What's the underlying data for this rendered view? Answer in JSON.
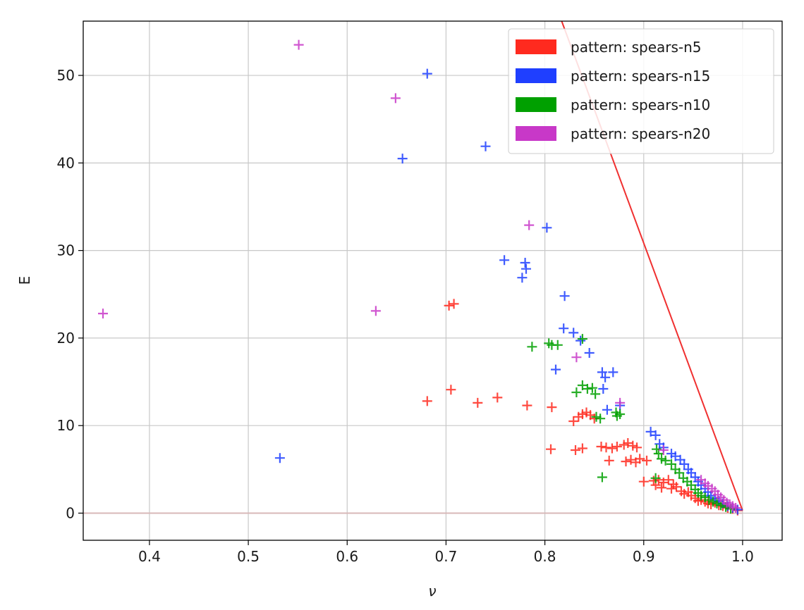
{
  "chart_data": {
    "type": "scatter",
    "xlabel": "ν",
    "ylabel": "E",
    "xlim": [
      0.333,
      1.04
    ],
    "ylim": [
      -3.1,
      56.2
    ],
    "grid": true,
    "legend_position": "top-right",
    "xticks": [
      {
        "v": 0.4,
        "label": "0.4"
      },
      {
        "v": 0.5,
        "label": "0.5"
      },
      {
        "v": 0.6,
        "label": "0.6"
      },
      {
        "v": 0.7,
        "label": "0.7"
      },
      {
        "v": 0.8,
        "label": "0.8"
      },
      {
        "v": 0.9,
        "label": "0.9"
      },
      {
        "v": 1.0,
        "label": "1.0"
      }
    ],
    "yticks": [
      {
        "v": 0,
        "label": "0"
      },
      {
        "v": 10,
        "label": "10"
      },
      {
        "v": 20,
        "label": "20"
      },
      {
        "v": 30,
        "label": "30"
      },
      {
        "v": 40,
        "label": "40"
      },
      {
        "v": 50,
        "label": "50"
      }
    ],
    "reference_lines": [
      {
        "color": "#f03030",
        "points": [
          [
            0.817,
            56.2
          ],
          [
            1.0,
            0.3
          ]
        ]
      },
      {
        "color": "#d8b8b8",
        "points": [
          [
            0.333,
            0
          ],
          [
            1.0,
            0
          ]
        ]
      }
    ],
    "series": [
      {
        "name": "pattern: spears-n5",
        "color": "#ff2a1f",
        "points": [
          [
            0.703,
            23.7
          ],
          [
            0.708,
            23.9
          ],
          [
            0.681,
            12.8
          ],
          [
            0.705,
            14.1
          ],
          [
            0.732,
            12.6
          ],
          [
            0.752,
            13.2
          ],
          [
            0.782,
            12.3
          ],
          [
            0.807,
            12.1
          ],
          [
            0.829,
            10.5
          ],
          [
            0.834,
            11.0
          ],
          [
            0.838,
            11.3
          ],
          [
            0.842,
            11.5
          ],
          [
            0.846,
            11.2
          ],
          [
            0.85,
            10.8
          ],
          [
            0.806,
            7.3
          ],
          [
            0.831,
            7.2
          ],
          [
            0.838,
            7.4
          ],
          [
            0.857,
            7.6
          ],
          [
            0.862,
            7.5
          ],
          [
            0.868,
            7.4
          ],
          [
            0.873,
            7.6
          ],
          [
            0.88,
            7.8
          ],
          [
            0.884,
            8.0
          ],
          [
            0.889,
            7.7
          ],
          [
            0.893,
            7.5
          ],
          [
            0.865,
            6.0
          ],
          [
            0.882,
            5.9
          ],
          [
            0.887,
            6.1
          ],
          [
            0.892,
            5.8
          ],
          [
            0.896,
            6.2
          ],
          [
            0.903,
            6.0
          ],
          [
            0.9,
            3.6
          ],
          [
            0.91,
            3.7
          ],
          [
            0.915,
            3.8
          ],
          [
            0.92,
            3.5
          ],
          [
            0.925,
            3.8
          ],
          [
            0.93,
            3.3
          ],
          [
            0.912,
            3.2
          ],
          [
            0.918,
            2.9
          ],
          [
            0.928,
            2.8
          ],
          [
            0.933,
            3.0
          ],
          [
            0.938,
            2.5
          ],
          [
            0.941,
            2.2
          ],
          [
            0.945,
            2.4
          ],
          [
            0.948,
            2.0
          ],
          [
            0.952,
            1.7
          ],
          [
            0.955,
            1.4
          ],
          [
            0.958,
            1.5
          ],
          [
            0.962,
            1.3
          ],
          [
            0.965,
            1.1
          ],
          [
            0.968,
            1.0
          ],
          [
            0.972,
            1.2
          ],
          [
            0.976,
            0.9
          ],
          [
            0.98,
            0.8
          ],
          [
            0.985,
            0.6
          ],
          [
            0.99,
            0.5
          ],
          [
            0.995,
            0.3
          ]
        ]
      },
      {
        "name": "pattern: spears-n15",
        "color": "#1f3fff",
        "points": [
          [
            0.681,
            50.2
          ],
          [
            0.656,
            40.5
          ],
          [
            0.74,
            41.9
          ],
          [
            0.802,
            32.6
          ],
          [
            0.759,
            28.9
          ],
          [
            0.78,
            28.6
          ],
          [
            0.781,
            27.9
          ],
          [
            0.777,
            26.9
          ],
          [
            0.82,
            24.8
          ],
          [
            0.819,
            21.1
          ],
          [
            0.829,
            20.6
          ],
          [
            0.836,
            19.7
          ],
          [
            0.845,
            18.3
          ],
          [
            0.811,
            16.4
          ],
          [
            0.858,
            16.1
          ],
          [
            0.861,
            15.5
          ],
          [
            0.859,
            14.2
          ],
          [
            0.869,
            16.1
          ],
          [
            0.863,
            11.8
          ],
          [
            0.876,
            12.3
          ],
          [
            0.532,
            6.3
          ],
          [
            0.907,
            9.3
          ],
          [
            0.912,
            8.9
          ],
          [
            0.916,
            7.9
          ],
          [
            0.92,
            7.5
          ],
          [
            0.928,
            6.8
          ],
          [
            0.932,
            6.5
          ],
          [
            0.937,
            6.1
          ],
          [
            0.941,
            5.6
          ],
          [
            0.945,
            5.0
          ],
          [
            0.948,
            4.6
          ],
          [
            0.952,
            4.1
          ],
          [
            0.955,
            3.6
          ],
          [
            0.958,
            3.2
          ],
          [
            0.962,
            2.8
          ],
          [
            0.965,
            2.4
          ],
          [
            0.968,
            2.0
          ],
          [
            0.972,
            1.7
          ],
          [
            0.976,
            1.4
          ],
          [
            0.98,
            1.1
          ],
          [
            0.985,
            0.8
          ],
          [
            0.99,
            0.6
          ],
          [
            0.995,
            0.4
          ]
        ]
      },
      {
        "name": "pattern: spears-n10",
        "color": "#00a000",
        "points": [
          [
            0.787,
            19.0
          ],
          [
            0.804,
            19.4
          ],
          [
            0.807,
            19.2
          ],
          [
            0.813,
            19.2
          ],
          [
            0.838,
            19.9
          ],
          [
            0.832,
            13.8
          ],
          [
            0.838,
            14.6
          ],
          [
            0.843,
            14.2
          ],
          [
            0.848,
            14.3
          ],
          [
            0.851,
            13.6
          ],
          [
            0.852,
            11.0
          ],
          [
            0.856,
            10.8
          ],
          [
            0.873,
            11.1
          ],
          [
            0.876,
            11.3
          ],
          [
            0.872,
            11.5
          ],
          [
            0.858,
            4.1
          ],
          [
            0.912,
            4.0
          ],
          [
            0.913,
            7.3
          ],
          [
            0.915,
            6.8
          ],
          [
            0.918,
            6.2
          ],
          [
            0.922,
            6.0
          ],
          [
            0.928,
            5.6
          ],
          [
            0.932,
            5.0
          ],
          [
            0.936,
            4.6
          ],
          [
            0.94,
            4.0
          ],
          [
            0.944,
            3.6
          ],
          [
            0.948,
            3.2
          ],
          [
            0.952,
            2.7
          ],
          [
            0.955,
            2.3
          ],
          [
            0.958,
            2.0
          ],
          [
            0.962,
            1.8
          ],
          [
            0.966,
            1.5
          ],
          [
            0.97,
            1.3
          ],
          [
            0.974,
            1.1
          ],
          [
            0.978,
            0.9
          ],
          [
            0.983,
            0.7
          ],
          [
            0.988,
            0.5
          ]
        ]
      },
      {
        "name": "pattern: spears-n20",
        "color": "#c838c8",
        "points": [
          [
            0.551,
            53.5
          ],
          [
            0.649,
            47.4
          ],
          [
            0.353,
            22.8
          ],
          [
            0.629,
            23.1
          ],
          [
            0.784,
            32.9
          ],
          [
            0.832,
            17.8
          ],
          [
            0.876,
            12.6
          ],
          [
            0.92,
            7.2
          ],
          [
            0.958,
            3.8
          ],
          [
            0.962,
            3.4
          ],
          [
            0.965,
            3.1
          ],
          [
            0.969,
            2.8
          ],
          [
            0.972,
            2.5
          ],
          [
            0.975,
            2.1
          ],
          [
            0.978,
            1.8
          ],
          [
            0.981,
            1.5
          ],
          [
            0.984,
            1.2
          ],
          [
            0.987,
            1.0
          ],
          [
            0.99,
            0.8
          ],
          [
            0.993,
            0.6
          ]
        ]
      }
    ]
  }
}
